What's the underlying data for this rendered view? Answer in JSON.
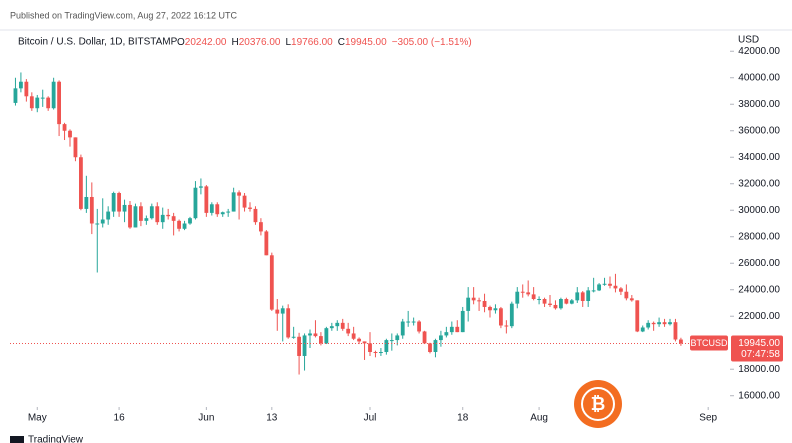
{
  "header": {
    "published": "Published on TradingView.com, Aug 27, 2022 16:12 UTC",
    "symbol": "Bitcoin / U.S. Dollar, 1D, BITSTAMP",
    "ohlc": [
      {
        "key": "O",
        "text": "20242.00"
      },
      {
        "key": "H",
        "text": "20376.00"
      },
      {
        "key": "L",
        "text": "19766.00"
      },
      {
        "key": "C",
        "text": "19945.00"
      }
    ],
    "change": "−305.00 (−1.51%)",
    "currency": "USD"
  },
  "footer": {
    "brand": "TradingView"
  },
  "chart_data": {
    "type": "candlestick",
    "up_color": "#26a69a",
    "down_color": "#ef5350",
    "open": [
      38100,
      39200,
      39700,
      38600,
      37700,
      38500,
      38500,
      37700,
      39700,
      36500,
      36000,
      35500,
      34000,
      30100,
      31000,
      29000,
      29000,
      29300,
      29900,
      31300,
      29900,
      30400,
      28700,
      30300,
      29200,
      29400,
      30300,
      29100,
      29650,
      29550,
      29200,
      28600,
      29000,
      29400,
      31700,
      31800,
      29800,
      30450,
      29700,
      29850,
      29900,
      31350,
      31100,
      30200,
      30100,
      29100,
      28400,
      26600,
      22500,
      22200,
      22600,
      20400,
      20450,
      19000,
      20550,
      20700,
      20500,
      19950,
      21100,
      21250,
      21500,
      21050,
      20700,
      20300,
      20100,
      19950,
      19300,
      19250,
      19300,
      20200,
      20200,
      20550,
      21600,
      21600,
      21600,
      20850,
      19950,
      19300,
      20200,
      20550,
      20800,
      21200,
      20800,
      22400,
      23400,
      23200,
      23150,
      22700,
      22450,
      22600,
      21300,
      21250,
      22950,
      23850,
      23800,
      23650,
      23300,
      23300,
      22950,
      22850,
      22600,
      23300,
      22950,
      23200,
      23800,
      23150,
      23950,
      23950,
      24400,
      24450,
      24300,
      24100,
      23850,
      23350,
      23200,
      20850,
      21150,
      21500,
      21400,
      21550,
      21400,
      21550,
      20242
    ],
    "high": [
      40000,
      40400,
      39900,
      38900,
      38700,
      39100,
      38600,
      40000,
      39800,
      36600,
      36100,
      35500,
      34200,
      32600,
      32100,
      30100,
      30900,
      30300,
      31400,
      31400,
      30800,
      30700,
      30500,
      30600,
      29600,
      30500,
      30600,
      30200,
      30100,
      29800,
      29300,
      29200,
      29500,
      32200,
      32400,
      31900,
      30600,
      30600,
      29900,
      30100,
      31700,
      31500,
      31300,
      30600,
      30300,
      29400,
      28500,
      26800,
      23300,
      22800,
      22900,
      21200,
      20750,
      20700,
      21000,
      21700,
      20800,
      21200,
      21500,
      21700,
      21800,
      21500,
      21200,
      20400,
      20100,
      20800,
      19400,
      19600,
      20300,
      20700,
      20700,
      21800,
      22400,
      21900,
      21700,
      20900,
      20000,
      20300,
      20900,
      21200,
      21600,
      21700,
      22700,
      24200,
      24200,
      23400,
      23700,
      22800,
      22900,
      22700,
      21700,
      23100,
      24200,
      24400,
      24700,
      24200,
      23500,
      23400,
      23600,
      23200,
      23400,
      23400,
      23300,
      24200,
      23900,
      24200,
      24900,
      24500,
      24900,
      25000,
      25200,
      24200,
      24400,
      23600,
      23200,
      21300,
      21700,
      21600,
      21900,
      21800,
      21800,
      21800,
      20376
    ],
    "low": [
      37900,
      38900,
      38200,
      37500,
      37400,
      37800,
      37500,
      37600,
      35600,
      35300,
      34800,
      33700,
      30000,
      29800,
      28200,
      25300,
      28700,
      28900,
      29500,
      29500,
      29100,
      28600,
      28700,
      28800,
      28900,
      29300,
      28900,
      28600,
      29300,
      28100,
      28400,
      28500,
      28900,
      29300,
      31200,
      29500,
      29600,
      29500,
      29500,
      29500,
      29900,
      29300,
      29900,
      29900,
      28900,
      28100,
      26600,
      22400,
      20900,
      20100,
      20300,
      20300,
      17600,
      17900,
      19600,
      20400,
      19800,
      19900,
      20900,
      20900,
      20900,
      20500,
      20200,
      19900,
      18700,
      19000,
      18900,
      19000,
      19100,
      19400,
      19800,
      20300,
      21200,
      21300,
      20700,
      19900,
      19200,
      18900,
      19700,
      20400,
      20600,
      20800,
      20800,
      21600,
      22900,
      22400,
      22300,
      21900,
      22200,
      21100,
      20700,
      21100,
      22600,
      23400,
      23500,
      23200,
      22900,
      22700,
      22700,
      22500,
      22500,
      22900,
      22900,
      23000,
      22700,
      22700,
      23800,
      23900,
      24300,
      24100,
      23800,
      23600,
      23200,
      23100,
      20800,
      20800,
      21000,
      20900,
      21200,
      21200,
      21300,
      20100,
      19766
    ],
    "close": [
      39200,
      39700,
      38600,
      37700,
      38500,
      38500,
      37700,
      39700,
      36500,
      36000,
      35500,
      34000,
      30100,
      31000,
      29000,
      29000,
      29300,
      29900,
      31300,
      29900,
      30400,
      28700,
      30300,
      29200,
      29400,
      30300,
      29100,
      29650,
      29550,
      29200,
      28600,
      29000,
      29400,
      31700,
      31800,
      29800,
      30450,
      29700,
      29850,
      29900,
      31350,
      31100,
      30200,
      30100,
      29100,
      28400,
      26600,
      22500,
      22200,
      22600,
      20400,
      20450,
      19000,
      20550,
      20700,
      20500,
      19950,
      21100,
      21250,
      21500,
      21050,
      20700,
      20300,
      20100,
      19950,
      19300,
      19250,
      19300,
      20200,
      20200,
      20550,
      21600,
      21600,
      21600,
      20850,
      19950,
      19300,
      20200,
      20550,
      20800,
      21200,
      20800,
      22400,
      23400,
      23200,
      23150,
      22700,
      22450,
      22600,
      21300,
      21250,
      22950,
      23850,
      23800,
      23650,
      23300,
      23300,
      22950,
      22850,
      22600,
      23300,
      22950,
      23200,
      23800,
      23150,
      23950,
      23950,
      24400,
      24450,
      24300,
      24100,
      23850,
      23350,
      23200,
      20850,
      21150,
      21500,
      21400,
      21550,
      21400,
      21550,
      20242,
      19945
    ],
    "xlim": [
      -1,
      131
    ],
    "xticks": [
      {
        "value": 4,
        "label": "May"
      },
      {
        "value": 19,
        "label": "16"
      },
      {
        "value": 35,
        "label": "Jun"
      },
      {
        "value": 47,
        "label": "13"
      },
      {
        "value": 65,
        "label": "Jul"
      },
      {
        "value": 82,
        "label": "18"
      },
      {
        "value": 96,
        "label": "Aug"
      },
      {
        "value": 127,
        "label": "Sep"
      }
    ],
    "ylim": [
      15300,
      43000
    ],
    "yticks": [
      {
        "value": 16000,
        "label": "16000.00"
      },
      {
        "value": 18000,
        "label": "18000.00"
      },
      {
        "value": 22000,
        "label": "22000.00"
      },
      {
        "value": 24000,
        "label": "24000.00"
      },
      {
        "value": 26000,
        "label": "26000.00"
      },
      {
        "value": 28000,
        "label": "28000.00"
      },
      {
        "value": 30000,
        "label": "30000.00"
      },
      {
        "value": 32000,
        "label": "32000.00"
      },
      {
        "value": 34000,
        "label": "34000.00"
      },
      {
        "value": 36000,
        "label": "36000.00"
      },
      {
        "value": 38000,
        "label": "38000.00"
      },
      {
        "value": 40000,
        "label": "40000.00"
      },
      {
        "value": 42000,
        "label": "42000.00"
      }
    ],
    "price_label": {
      "name": "BTCUSD",
      "value_label": "19945.00",
      "countdown": "07:47:58"
    }
  }
}
